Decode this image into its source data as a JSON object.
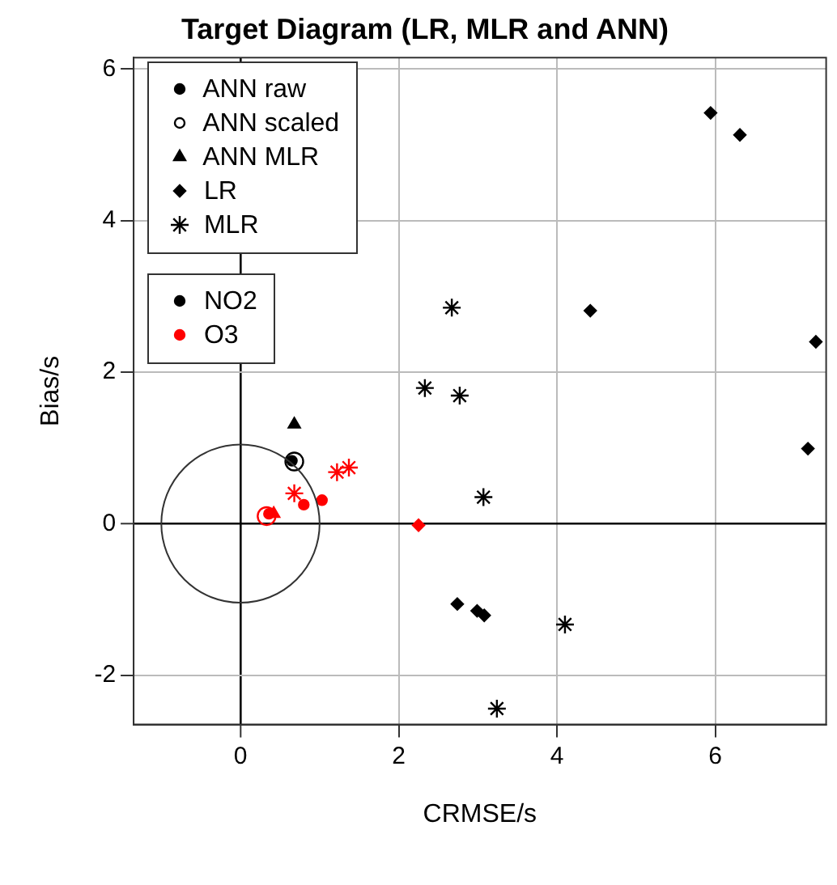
{
  "chart_data": {
    "type": "scatter",
    "title": "Target Diagram (LR, MLR and ANN)",
    "xlabel": "CRMSE/s",
    "ylabel": "Bias/s",
    "xlim": [
      -1.35,
      7.4
    ],
    "ylim": [
      -2.65,
      6.15
    ],
    "xticks": [
      0,
      2,
      4,
      6
    ],
    "yticks": [
      -2,
      0,
      2,
      4,
      6
    ],
    "grid": true,
    "legend": "top left",
    "series": [
      {
        "name": "ANN raw",
        "color": "#000000",
        "marker": "circle",
        "x": [
          0.65,
          0.8,
          1.03,
          0.36
        ],
        "values": [
          0.83,
          0.25,
          0.31,
          0.13
        ],
        "colors": [
          "#000000",
          "#ff0000",
          "#ff0000",
          "#ff0000"
        ]
      },
      {
        "name": "ANN scaled",
        "color": "#000000",
        "marker": "circle",
        "x": [
          0.68,
          0.33
        ],
        "values": [
          0.82,
          0.1
        ],
        "colors": [
          "#000000",
          "#ff0000"
        ]
      },
      {
        "name": "ANN MLR",
        "color": "#000000",
        "marker": "triangle",
        "x": [
          0.68,
          0.42
        ],
        "values": [
          1.31,
          0.13
        ],
        "colors": [
          "#000000",
          "#ff0000"
        ]
      },
      {
        "name": "LR",
        "color": "#000000",
        "marker": "diamond",
        "x": [
          5.94,
          6.31,
          4.42,
          7.27,
          7.17,
          2.74,
          2.99,
          3.08,
          2.25
        ],
        "values": [
          5.42,
          5.13,
          2.81,
          2.4,
          0.99,
          -1.06,
          -1.15,
          -1.21,
          -0.02
        ],
        "colors": [
          "#000000",
          "#000000",
          "#000000",
          "#000000",
          "#000000",
          "#000000",
          "#000000",
          "#000000",
          "#ff0000"
        ]
      },
      {
        "name": "MLR",
        "color": "#000000",
        "marker": "cross",
        "x": [
          2.67,
          2.33,
          2.77,
          3.07,
          4.1,
          3.24,
          0.68,
          1.22,
          1.37
        ],
        "values": [
          2.85,
          1.79,
          1.69,
          0.35,
          -1.33,
          -2.44,
          0.4,
          0.68,
          0.74
        ],
        "colors": [
          "#000000",
          "#000000",
          "#000000",
          "#000000",
          "#000000",
          "#000000",
          "#ff0000",
          "#ff0000",
          "#ff0000"
        ]
      },
      {
        "name": "NO2",
        "color": "#000000",
        "marker": "circle"
      },
      {
        "name": "O3",
        "color": "#ff0000",
        "marker": "circle"
      }
    ]
  }
}
